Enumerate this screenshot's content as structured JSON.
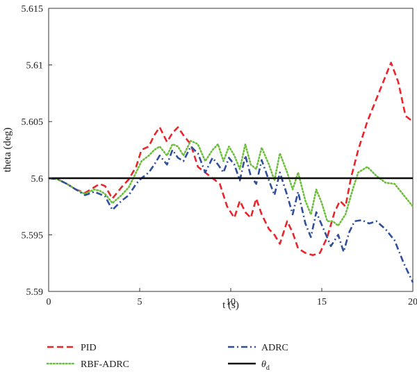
{
  "chart_data": {
    "type": "line",
    "title": "",
    "xlabel": "t (s)",
    "ylabel": "theta (deg)",
    "xlim": [
      0,
      20
    ],
    "ylim": [
      5.59,
      5.615
    ],
    "xticks": [
      0,
      5,
      10,
      15,
      20
    ],
    "xtick_labels": [
      "0",
      "5",
      "10",
      "15",
      "20"
    ],
    "yticks": [
      5.59,
      5.595,
      5.6,
      5.605,
      5.61,
      5.615
    ],
    "ytick_labels": [
      "5.59",
      "5.595",
      "5.6",
      "5.605",
      "5.61",
      "5.615"
    ],
    "grid": false,
    "legend_position": "bottom",
    "series": [
      {
        "name": "PID",
        "color": "#e8252a",
        "style": "dashed",
        "x": [
          0,
          0.5,
          1,
          1.5,
          2,
          2.5,
          2.8,
          3.1,
          3.5,
          4,
          4.4,
          4.8,
          5.1,
          5.5,
          5.8,
          6.1,
          6.5,
          6.8,
          7.1,
          7.4,
          7.8,
          8.2,
          8.6,
          9,
          9.4,
          9.8,
          10.2,
          10.5,
          10.8,
          11.1,
          11.4,
          11.7,
          12.1,
          12.4,
          12.7,
          13.1,
          13.4,
          13.7,
          14.1,
          14.5,
          14.9,
          15.3,
          15.7,
          16,
          16.3,
          16.6,
          17,
          17.5,
          18,
          18.5,
          18.8,
          19.2,
          19.6,
          20
        ],
        "y": [
          5.6,
          5.5999,
          5.5995,
          5.599,
          5.5987,
          5.5992,
          5.5995,
          5.5993,
          5.5982,
          5.5992,
          5.5999,
          5.601,
          5.6025,
          5.6028,
          5.6038,
          5.6045,
          5.6032,
          5.604,
          5.6045,
          5.6038,
          5.603,
          5.601,
          5.6005,
          5.6,
          5.5995,
          5.5975,
          5.5965,
          5.598,
          5.597,
          5.5965,
          5.5982,
          5.5968,
          5.5955,
          5.595,
          5.5942,
          5.5962,
          5.5952,
          5.5938,
          5.5934,
          5.5932,
          5.5934,
          5.5948,
          5.597,
          5.598,
          5.5975,
          5.6,
          5.6025,
          5.605,
          5.607,
          5.609,
          5.6102,
          5.6085,
          5.6055,
          5.605
        ]
      },
      {
        "name": "RBF-ADRC",
        "color": "#6cbf3c",
        "style": "dotted",
        "x": [
          0,
          0.5,
          1,
          1.5,
          2,
          2.5,
          2.8,
          3.1,
          3.5,
          4,
          4.4,
          4.8,
          5.1,
          5.5,
          5.8,
          6.1,
          6.5,
          6.8,
          7.1,
          7.4,
          7.8,
          8.2,
          8.6,
          9,
          9.3,
          9.6,
          9.9,
          10.2,
          10.5,
          10.8,
          11.1,
          11.4,
          11.7,
          12.1,
          12.4,
          12.7,
          13.1,
          13.4,
          13.7,
          14.1,
          14.4,
          14.7,
          15,
          15.3,
          15.6,
          15.9,
          16.3,
          16.7,
          17,
          17.5,
          18,
          18.5,
          19,
          19.5,
          20
        ],
        "y": [
          5.6,
          5.5999,
          5.5995,
          5.599,
          5.5986,
          5.599,
          5.5989,
          5.5986,
          5.5978,
          5.5985,
          5.5992,
          5.6005,
          5.6015,
          5.602,
          5.6025,
          5.6028,
          5.602,
          5.603,
          5.6028,
          5.602,
          5.6033,
          5.603,
          5.6015,
          5.6025,
          5.603,
          5.6015,
          5.6028,
          5.602,
          5.6008,
          5.603,
          5.6012,
          5.6008,
          5.6027,
          5.6012,
          5.5998,
          5.6022,
          5.6005,
          5.599,
          5.6005,
          5.598,
          5.5968,
          5.599,
          5.5978,
          5.5962,
          5.5962,
          5.5958,
          5.5968,
          5.599,
          5.6005,
          5.601,
          5.6002,
          5.5996,
          5.5995,
          5.5985,
          5.5975
        ]
      },
      {
        "name": "ADRC",
        "color": "#2e4f9c",
        "style": "dashdot",
        "x": [
          0,
          0.5,
          1,
          1.5,
          2,
          2.5,
          2.8,
          3.1,
          3.5,
          4,
          4.4,
          4.8,
          5.1,
          5.5,
          5.8,
          6.1,
          6.5,
          6.8,
          7.1,
          7.4,
          7.8,
          8.2,
          8.6,
          9,
          9.3,
          9.6,
          9.9,
          10.2,
          10.5,
          10.8,
          11.1,
          11.4,
          11.7,
          12.1,
          12.4,
          12.7,
          13.1,
          13.4,
          13.7,
          14.1,
          14.4,
          14.7,
          15.1,
          15.5,
          15.9,
          16.2,
          16.5,
          16.8,
          17.2,
          17.6,
          18,
          18.5,
          19,
          19.5,
          20
        ],
        "y": [
          5.6,
          5.5999,
          5.5995,
          5.599,
          5.5985,
          5.5988,
          5.5986,
          5.5984,
          5.5972,
          5.598,
          5.5985,
          5.5995,
          5.6,
          5.6005,
          5.6012,
          5.602,
          5.6012,
          5.6025,
          5.6018,
          5.6015,
          5.6028,
          5.6022,
          5.6005,
          5.6018,
          5.6012,
          5.6005,
          5.6018,
          5.6012,
          5.5998,
          5.602,
          5.6002,
          5.5995,
          5.6016,
          5.5998,
          5.5985,
          5.6005,
          5.5985,
          5.5968,
          5.5988,
          5.596,
          5.5948,
          5.597,
          5.5955,
          5.594,
          5.595,
          5.5935,
          5.5952,
          5.5962,
          5.5963,
          5.596,
          5.5962,
          5.5955,
          5.5945,
          5.5925,
          5.5908
        ]
      },
      {
        "name": "θd",
        "label_main": "θ",
        "label_sub": "d",
        "color": "#111111",
        "style": "solid",
        "x": [
          0,
          20
        ],
        "y": [
          5.6,
          5.6
        ]
      }
    ]
  }
}
